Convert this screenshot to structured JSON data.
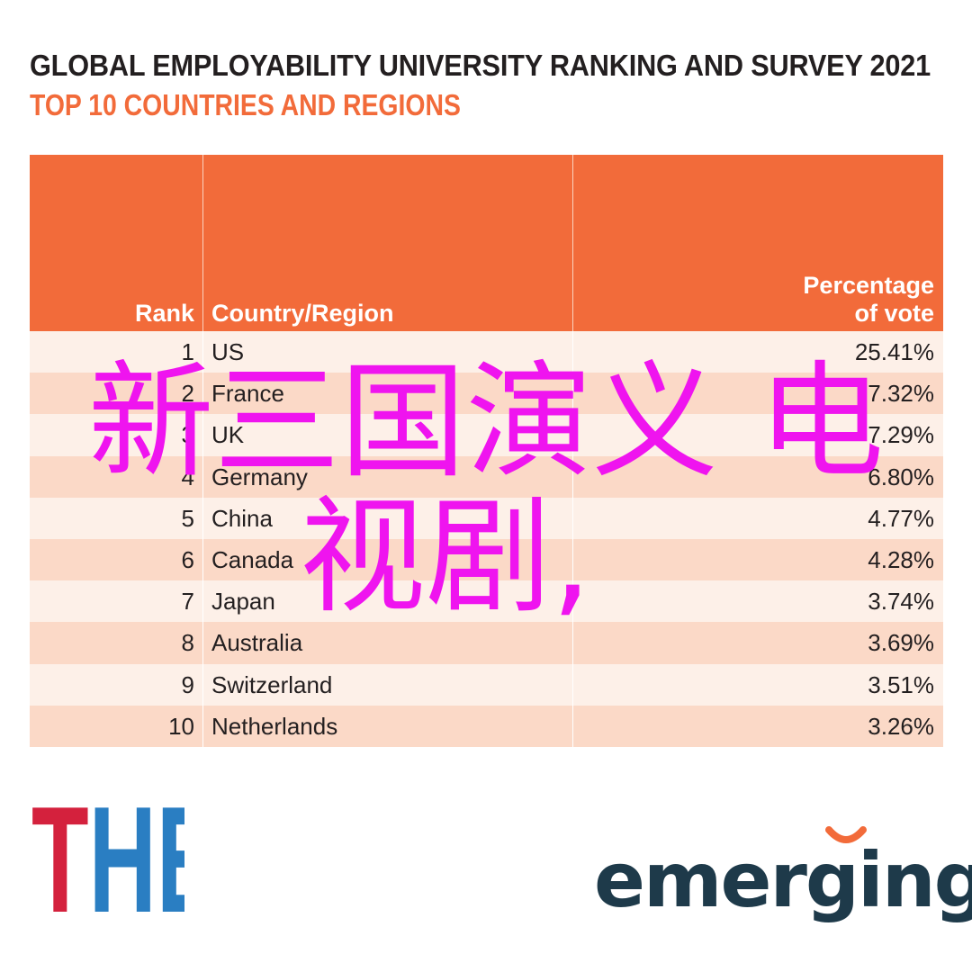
{
  "chart_data": {
    "type": "table",
    "title": "GLOBAL EMPLOYABILITY UNIVERSITY RANKING AND SURVEY 2021",
    "subtitle": "TOP 10 COUNTRIES AND REGIONS",
    "columns": [
      "Rank",
      "Country/Region",
      "Percentage of vote"
    ],
    "header_line1": "Percentage",
    "header_line2": "of vote",
    "rows": [
      {
        "rank": "1",
        "country": "US",
        "pct": "25.41%"
      },
      {
        "rank": "2",
        "country": "France",
        "pct": "7.32%"
      },
      {
        "rank": "3",
        "country": "UK",
        "pct": "7.29%"
      },
      {
        "rank": "4",
        "country": "Germany",
        "pct": "6.80%"
      },
      {
        "rank": "5",
        "country": "China",
        "pct": "4.77%"
      },
      {
        "rank": "6",
        "country": "Canada",
        "pct": "4.28%"
      },
      {
        "rank": "7",
        "country": "Japan",
        "pct": "3.74%"
      },
      {
        "rank": "8",
        "country": "Australia",
        "pct": "3.69%"
      },
      {
        "rank": "9",
        "country": "Switzerland",
        "pct": "3.51%"
      },
      {
        "rank": "10",
        "country": "Netherlands",
        "pct": "3.26%"
      }
    ]
  },
  "overlay": {
    "line1": "新三国演义 电",
    "line2": "视剧,"
  },
  "logos": {
    "the": "THE",
    "emerging": "emerging"
  },
  "colors": {
    "header_orange": "#f26b3a",
    "row_light": "#fdf0e8",
    "row_dark": "#fbd9c7",
    "overlay_magenta": "#ef14ef",
    "the_red": "#d4213d",
    "the_blue": "#2a7ec2",
    "emerging_navy": "#1e3a4a",
    "emerging_orange": "#f26b3a"
  }
}
